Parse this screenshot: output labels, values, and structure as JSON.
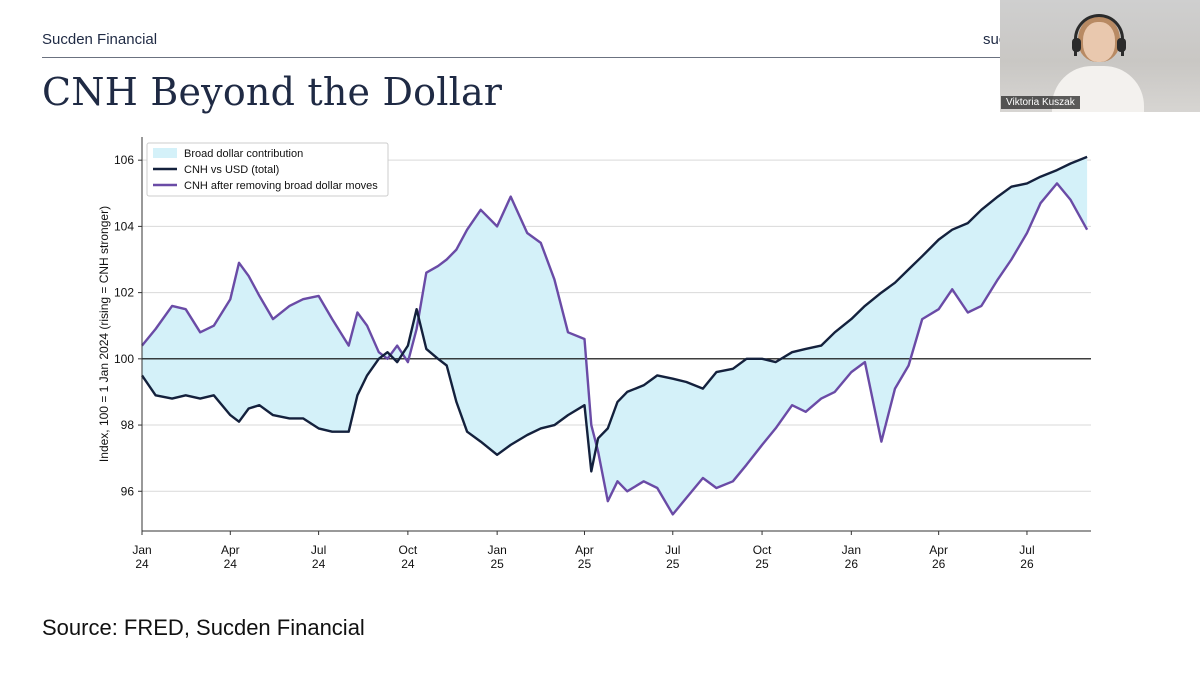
{
  "header": {
    "brand": "Sucden Financial",
    "brand_right_partial": "suc",
    "title": "CNH Beyond the Dollar"
  },
  "footer": {
    "source": "Source: FRED, Sucden Financial"
  },
  "video": {
    "participant_name": "Viktoria Kuszak"
  },
  "colors": {
    "fill": "#d4f1f9",
    "total": "#14213d",
    "adjusted": "#6a4ba6",
    "baseline": "#000000"
  },
  "chart_data": {
    "type": "line",
    "ylabel": "Index, 100 = 1 Jan 2024 (rising = CNH stronger)",
    "ylim": [
      94.8,
      106.7
    ],
    "xlim": [
      "2024-01-01",
      "2026-09-05"
    ],
    "yticks": [
      96,
      98,
      100,
      102,
      104,
      106
    ],
    "xticks": [
      {
        "date": "2024-01-01",
        "month": "Jan",
        "year": "24"
      },
      {
        "date": "2024-04-01",
        "month": "Apr",
        "year": "24"
      },
      {
        "date": "2024-07-01",
        "month": "Jul",
        "year": "24"
      },
      {
        "date": "2024-10-01",
        "month": "Oct",
        "year": "24"
      },
      {
        "date": "2025-01-01",
        "month": "Jan",
        "year": "25"
      },
      {
        "date": "2025-04-01",
        "month": "Apr",
        "year": "25"
      },
      {
        "date": "2025-07-01",
        "month": "Jul",
        "year": "25"
      },
      {
        "date": "2025-10-01",
        "month": "Oct",
        "year": "25"
      },
      {
        "date": "2026-01-01",
        "month": "Jan",
        "year": "26"
      },
      {
        "date": "2026-04-01",
        "month": "Apr",
        "year": "26"
      },
      {
        "date": "2026-07-01",
        "month": "Jul",
        "year": "26"
      }
    ],
    "grid": "horizontal",
    "baseline": 100,
    "legend": {
      "placement": "top-left",
      "entries": [
        {
          "label": "Broad dollar contribution",
          "kind": "fill"
        },
        {
          "label": "CNH vs USD (total)",
          "kind": "total"
        },
        {
          "label": "CNH after removing broad dollar moves",
          "kind": "adjusted"
        }
      ]
    },
    "series": [
      {
        "name": "CNH vs USD (total)",
        "x": [
          "2024-01-01",
          "2024-01-15",
          "2024-02-01",
          "2024-02-15",
          "2024-03-01",
          "2024-03-15",
          "2024-04-01",
          "2024-04-10",
          "2024-04-20",
          "2024-05-01",
          "2024-05-15",
          "2024-06-01",
          "2024-06-15",
          "2024-07-01",
          "2024-07-15",
          "2024-08-01",
          "2024-08-10",
          "2024-08-20",
          "2024-09-01",
          "2024-09-10",
          "2024-09-20",
          "2024-10-01",
          "2024-10-10",
          "2024-10-20",
          "2024-11-01",
          "2024-11-10",
          "2024-11-20",
          "2024-12-01",
          "2024-12-15",
          "2025-01-01",
          "2025-01-15",
          "2025-02-01",
          "2025-02-15",
          "2025-03-01",
          "2025-03-15",
          "2025-04-01",
          "2025-04-08",
          "2025-04-15",
          "2025-04-25",
          "2025-05-05",
          "2025-05-15",
          "2025-06-01",
          "2025-06-15",
          "2025-07-01",
          "2025-07-15",
          "2025-08-01",
          "2025-08-15",
          "2025-09-01",
          "2025-09-15",
          "2025-10-01",
          "2025-10-15",
          "2025-11-01",
          "2025-11-15",
          "2025-12-01",
          "2025-12-15",
          "2026-01-01",
          "2026-01-15",
          "2026-02-01",
          "2026-02-15",
          "2026-03-01",
          "2026-03-15",
          "2026-04-01",
          "2026-04-15",
          "2026-05-01",
          "2026-05-15",
          "2026-06-01",
          "2026-06-15",
          "2026-07-01",
          "2026-07-15",
          "2026-08-01",
          "2026-08-15",
          "2026-09-01"
        ],
        "values": [
          99.5,
          98.9,
          98.8,
          98.9,
          98.8,
          98.9,
          98.3,
          98.1,
          98.5,
          98.6,
          98.3,
          98.2,
          98.2,
          97.9,
          97.8,
          97.8,
          98.9,
          99.5,
          100.0,
          100.2,
          99.9,
          100.4,
          101.5,
          100.3,
          100.0,
          99.8,
          98.7,
          97.8,
          97.5,
          97.1,
          97.4,
          97.7,
          97.9,
          98.0,
          98.3,
          98.6,
          96.6,
          97.6,
          97.9,
          98.7,
          99.0,
          99.2,
          99.5,
          99.4,
          99.3,
          99.1,
          99.6,
          99.7,
          100.0,
          100.0,
          99.9,
          100.2,
          100.3,
          100.4,
          100.8,
          101.2,
          101.6,
          102.0,
          102.3,
          102.7,
          103.1,
          103.6,
          103.9,
          104.1,
          104.5,
          104.9,
          105.2,
          105.3,
          105.5,
          105.7,
          105.9,
          106.1
        ]
      },
      {
        "name": "CNH after removing broad dollar moves",
        "x": [
          "2024-01-01",
          "2024-01-15",
          "2024-02-01",
          "2024-02-15",
          "2024-03-01",
          "2024-03-15",
          "2024-04-01",
          "2024-04-10",
          "2024-04-20",
          "2024-05-01",
          "2024-05-15",
          "2024-06-01",
          "2024-06-15",
          "2024-07-01",
          "2024-07-15",
          "2024-08-01",
          "2024-08-10",
          "2024-08-20",
          "2024-09-01",
          "2024-09-10",
          "2024-09-20",
          "2024-10-01",
          "2024-10-10",
          "2024-10-20",
          "2024-11-01",
          "2024-11-10",
          "2024-11-20",
          "2024-12-01",
          "2024-12-15",
          "2025-01-01",
          "2025-01-15",
          "2025-02-01",
          "2025-02-15",
          "2025-03-01",
          "2025-03-15",
          "2025-04-01",
          "2025-04-08",
          "2025-04-15",
          "2025-04-25",
          "2025-05-05",
          "2025-05-15",
          "2025-06-01",
          "2025-06-15",
          "2025-07-01",
          "2025-07-15",
          "2025-08-01",
          "2025-08-15",
          "2025-09-01",
          "2025-09-15",
          "2025-10-01",
          "2025-10-15",
          "2025-11-01",
          "2025-11-15",
          "2025-12-01",
          "2025-12-15",
          "2026-01-01",
          "2026-01-15",
          "2026-02-01",
          "2026-02-15",
          "2026-03-01",
          "2026-03-15",
          "2026-04-01",
          "2026-04-15",
          "2026-05-01",
          "2026-05-15",
          "2026-06-01",
          "2026-06-15",
          "2026-07-01",
          "2026-07-15",
          "2026-08-01",
          "2026-08-15",
          "2026-09-01"
        ],
        "values": [
          100.4,
          100.9,
          101.6,
          101.5,
          100.8,
          101.0,
          101.8,
          102.9,
          102.5,
          101.9,
          101.2,
          101.6,
          101.8,
          101.9,
          101.2,
          100.4,
          101.4,
          101.0,
          100.2,
          100.0,
          100.4,
          99.9,
          100.9,
          102.6,
          102.8,
          103.0,
          103.3,
          103.9,
          104.5,
          104.0,
          104.9,
          103.8,
          103.5,
          102.4,
          100.8,
          100.6,
          98.0,
          97.2,
          95.7,
          96.3,
          96.0,
          96.3,
          96.1,
          95.3,
          95.8,
          96.4,
          96.1,
          96.3,
          96.8,
          97.4,
          97.9,
          98.6,
          98.4,
          98.8,
          99.0,
          99.6,
          99.9,
          97.5,
          99.1,
          99.8,
          101.2,
          101.5,
          102.1,
          101.4,
          101.6,
          102.4,
          103.0,
          103.8,
          104.7,
          105.3,
          104.8,
          103.9
        ]
      }
    ]
  }
}
